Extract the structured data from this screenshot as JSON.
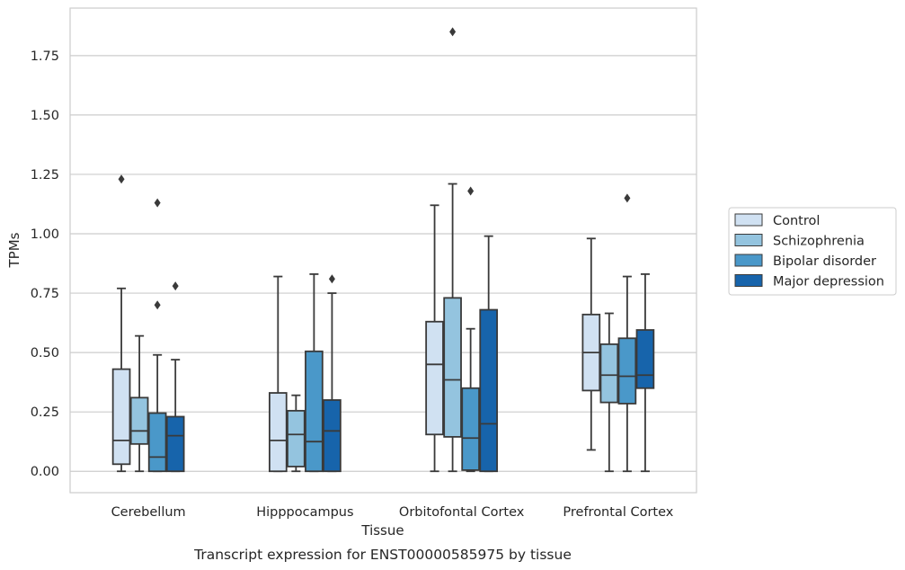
{
  "chart_data": {
    "type": "boxplot",
    "title": "",
    "caption": "Transcript expression for ENST00000585975 by tissue",
    "xlabel": "Tissue",
    "ylabel": "TPMs",
    "ylim": [
      -0.09,
      1.95
    ],
    "yticks": [
      "0.00",
      "0.25",
      "0.50",
      "0.75",
      "1.00",
      "1.25",
      "1.50",
      "1.75"
    ],
    "ytick_values": [
      0,
      0.25,
      0.5,
      0.75,
      1.0,
      1.25,
      1.5,
      1.75
    ],
    "grid": "horizontal",
    "legend_position": "right",
    "categories": [
      "Cerebellum",
      "Hipppocampus",
      "Orbitofontal Cortex",
      "Prefrontal Cortex"
    ],
    "series": [
      {
        "name": "Control",
        "color": "#d0e1f2",
        "boxes": [
          {
            "whisker_low": 0.0,
            "q1": 0.03,
            "median": 0.13,
            "q3": 0.43,
            "whisker_high": 0.77,
            "outliers": [
              1.23
            ]
          },
          {
            "whisker_low": 0.0,
            "q1": 0.0,
            "median": 0.13,
            "q3": 0.33,
            "whisker_high": 0.82,
            "outliers": []
          },
          {
            "whisker_low": 0.0,
            "q1": 0.155,
            "median": 0.45,
            "q3": 0.63,
            "whisker_high": 1.12,
            "outliers": []
          },
          {
            "whisker_low": 0.09,
            "q1": 0.34,
            "median": 0.5,
            "q3": 0.66,
            "whisker_high": 0.98,
            "outliers": []
          }
        ]
      },
      {
        "name": "Schizophrenia",
        "color": "#94c4df",
        "boxes": [
          {
            "whisker_low": 0.0,
            "q1": 0.115,
            "median": 0.17,
            "q3": 0.31,
            "whisker_high": 0.57,
            "outliers": []
          },
          {
            "whisker_low": 0.0,
            "q1": 0.02,
            "median": 0.155,
            "q3": 0.255,
            "whisker_high": 0.32,
            "outliers": []
          },
          {
            "whisker_low": 0.0,
            "q1": 0.145,
            "median": 0.385,
            "q3": 0.73,
            "whisker_high": 1.21,
            "outliers": [
              1.85
            ]
          },
          {
            "whisker_low": 0.0,
            "q1": 0.29,
            "median": 0.405,
            "q3": 0.535,
            "whisker_high": 0.665,
            "outliers": []
          }
        ]
      },
      {
        "name": "Bipolar disorder",
        "color": "#4a98c9",
        "boxes": [
          {
            "whisker_low": 0.0,
            "q1": 0.0,
            "median": 0.06,
            "q3": 0.245,
            "whisker_high": 0.49,
            "outliers": [
              0.7,
              1.13
            ]
          },
          {
            "whisker_low": 0.0,
            "q1": 0.0,
            "median": 0.125,
            "q3": 0.505,
            "whisker_high": 0.83,
            "outliers": []
          },
          {
            "whisker_low": 0.0,
            "q1": 0.005,
            "median": 0.14,
            "q3": 0.35,
            "whisker_high": 0.6,
            "outliers": [
              1.18
            ]
          },
          {
            "whisker_low": 0.0,
            "q1": 0.285,
            "median": 0.4,
            "q3": 0.56,
            "whisker_high": 0.82,
            "outliers": [
              1.15
            ]
          }
        ]
      },
      {
        "name": "Major depression",
        "color": "#1764ab",
        "boxes": [
          {
            "whisker_low": 0.0,
            "q1": 0.0,
            "median": 0.15,
            "q3": 0.23,
            "whisker_high": 0.47,
            "outliers": [
              0.78
            ]
          },
          {
            "whisker_low": 0.0,
            "q1": 0.0,
            "median": 0.17,
            "q3": 0.3,
            "whisker_high": 0.75,
            "outliers": [
              0.81
            ]
          },
          {
            "whisker_low": 0.0,
            "q1": 0.0,
            "median": 0.2,
            "q3": 0.68,
            "whisker_high": 0.99,
            "outliers": []
          },
          {
            "whisker_low": 0.0,
            "q1": 0.35,
            "median": 0.405,
            "q3": 0.595,
            "whisker_high": 0.83,
            "outliers": []
          }
        ]
      }
    ]
  }
}
